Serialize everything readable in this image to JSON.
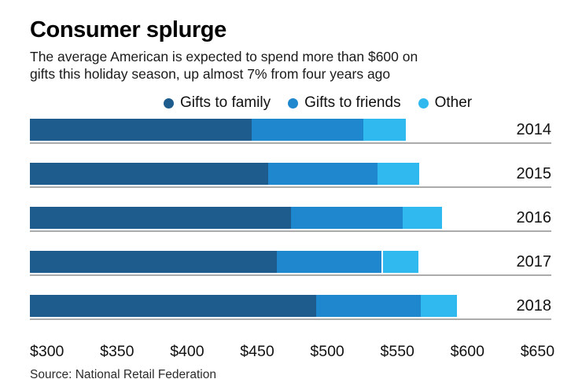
{
  "title": "Consumer splurge",
  "subtitle_lines": [
    "The average American is expected to spend more than $600 on",
    "gifts this holiday season, up almost 7% from four years ago"
  ],
  "source": "Source: National Retail Federation",
  "colors": {
    "family": "#1d5c8d",
    "friends": "#1e87cd",
    "other": "#2fb9ee",
    "grid_line": "#ababab",
    "divider": "#ffffff"
  },
  "chart_data": {
    "type": "bar",
    "orientation": "horizontal-stacked",
    "title": "Consumer splurge",
    "categories": [
      "2014",
      "2015",
      "2016",
      "2017",
      "2018"
    ],
    "series": [
      {
        "name": "Gifts to family",
        "color": "#1d5c8d",
        "values": [
          458,
          470,
          486,
          476,
          504
        ]
      },
      {
        "name": "Gifts to friends",
        "color": "#1e87cd",
        "values": [
          80,
          78,
          80,
          75,
          75
        ]
      },
      {
        "name": "Other",
        "color": "#2fb9ee",
        "values": [
          30,
          30,
          28,
          26,
          26
        ]
      }
    ],
    "totals": [
      568,
      578,
      594,
      577,
      605
    ],
    "xlim": [
      300,
      650
    ],
    "x_ticks": [
      {
        "label": "$300",
        "value": 300
      },
      {
        "label": "$350",
        "value": 350
      },
      {
        "label": "$400",
        "value": 400
      },
      {
        "label": "$450",
        "value": 450
      },
      {
        "label": "$500",
        "value": 500
      },
      {
        "label": "$550",
        "value": 550
      },
      {
        "label": "$600",
        "value": 600
      },
      {
        "label": "$650",
        "value": 650
      }
    ],
    "legend_position": "top",
    "grid": false,
    "dividers": [
      {
        "category": "2017",
        "before_series": "Other"
      }
    ]
  }
}
